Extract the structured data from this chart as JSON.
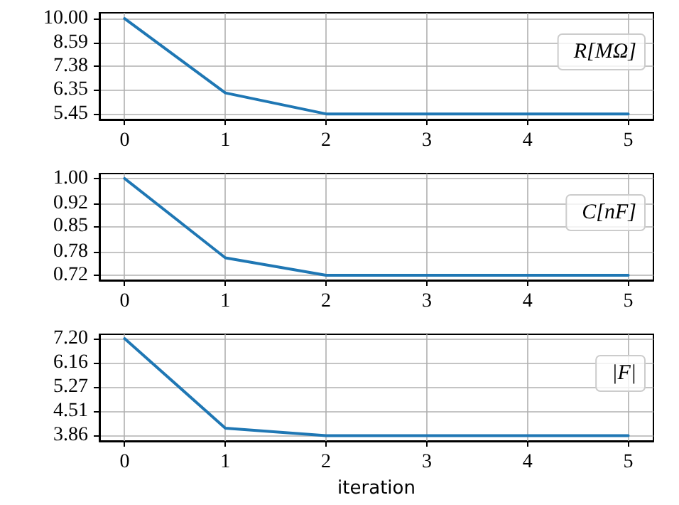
{
  "chart_data": [
    {
      "type": "line",
      "x": [
        0,
        1,
        2,
        3,
        4,
        5
      ],
      "series": [
        {
          "name": "R[MΩ]",
          "color": "#1f77b4",
          "values": [
            10.0,
            6.23,
            5.45,
            5.45,
            5.45,
            5.45
          ]
        }
      ],
      "log": "y",
      "xlim": [
        -0.25,
        5.25
      ],
      "xticks": [
        0,
        1,
        2,
        3,
        4,
        5
      ],
      "ylim": [
        5.26,
        10.37
      ],
      "yticks": [
        5.45,
        6.35,
        7.38,
        8.59,
        {
          "value": 10,
          "label": "10.00"
        }
      ],
      "grid": true,
      "legend": "top right",
      "marker": "none",
      "line_style": "solid"
    },
    {
      "type": "line",
      "x": [
        0,
        1,
        2,
        3,
        4,
        5
      ],
      "series": [
        {
          "name": "C[nF]",
          "color": "#1f77b4",
          "values": [
            1.0,
            0.764,
            0.72,
            0.72,
            0.72,
            0.72
          ]
        }
      ],
      "log": "y",
      "xlim": [
        -0.25,
        5.25
      ],
      "xticks": [
        0,
        1,
        2,
        3,
        4,
        5
      ],
      "ylim": [
        0.708,
        1.017
      ],
      "yticks": [
        0.72,
        0.78,
        0.85,
        0.92,
        {
          "value": 1,
          "label": "1.00"
        }
      ],
      "grid": true,
      "legend": "top right",
      "marker": "none",
      "line_style": "solid"
    },
    {
      "type": "line",
      "xlabel": "iteration",
      "x": [
        0,
        1,
        2,
        3,
        4,
        5
      ],
      "series": [
        {
          "name": "|F|",
          "color": "#1f77b4",
          "values": [
            7.2,
            4.05,
            3.86,
            3.86,
            3.86,
            3.86
          ]
        }
      ],
      "log": "y",
      "xlim": [
        -0.25,
        5.25
      ],
      "xticks": [
        0,
        1,
        2,
        3,
        4,
        5
      ],
      "ylim": [
        3.73,
        7.4
      ],
      "yticks": [
        3.86,
        4.51,
        5.27,
        6.16,
        {
          "value": 7.2,
          "label": "7.20"
        }
      ],
      "grid": true,
      "legend": "top right",
      "marker": "none",
      "line_style": "solid"
    }
  ]
}
